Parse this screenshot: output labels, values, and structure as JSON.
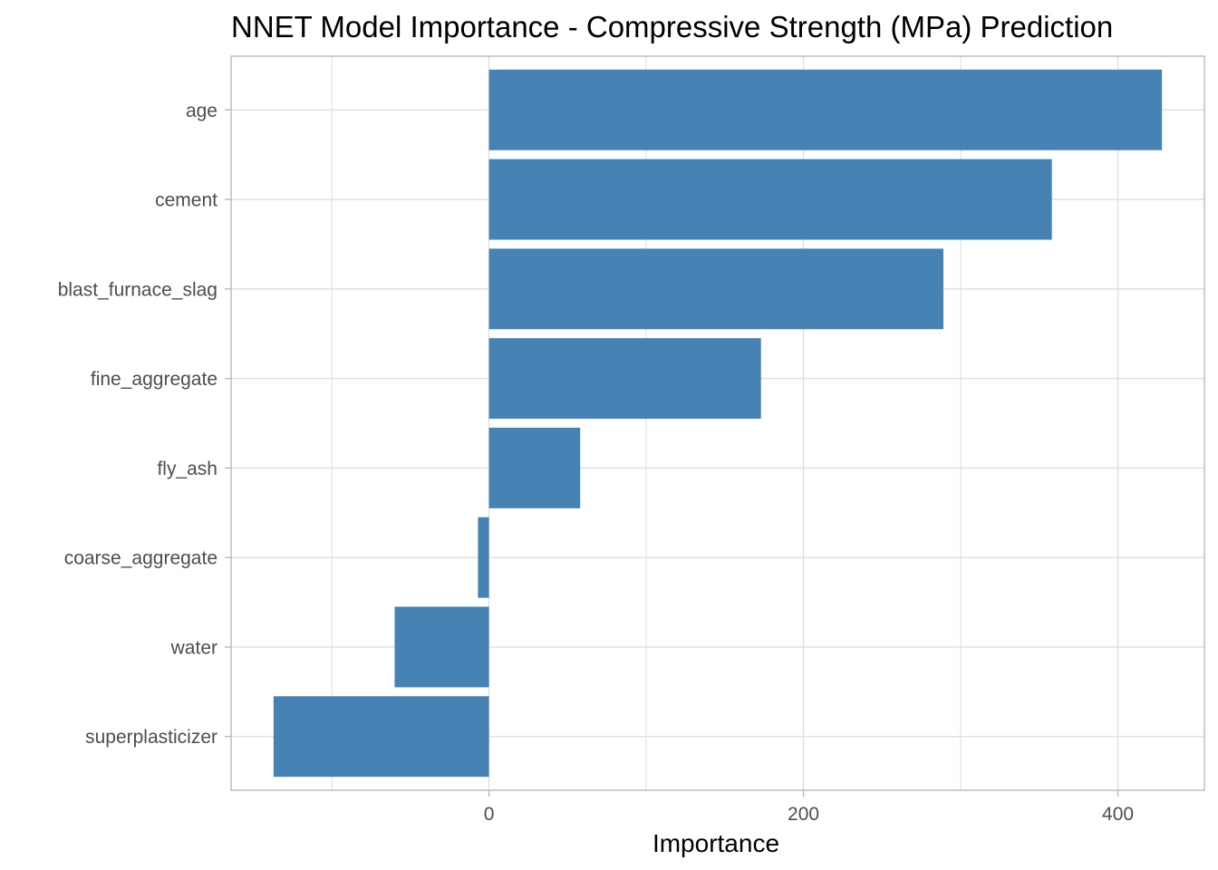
{
  "chart_data": {
    "type": "bar",
    "orientation": "horizontal",
    "title": "NNET Model Importance - Compressive Strength (MPa) Prediction",
    "xlabel": "Importance",
    "ylabel": "",
    "categories": [
      "age",
      "cement",
      "blast_furnace_slag",
      "fine_aggregate",
      "fly_ash",
      "coarse_aggregate",
      "water",
      "superplasticizer"
    ],
    "values": [
      428,
      358,
      289,
      173,
      58,
      -7,
      -60,
      -137
    ],
    "xlim": [
      -164,
      455
    ],
    "xticks": [
      0,
      200,
      400
    ],
    "grid": true,
    "bar_color": "#4682b4",
    "grid_color": "#dedede",
    "panel_border_color": "#b3b3b3"
  }
}
